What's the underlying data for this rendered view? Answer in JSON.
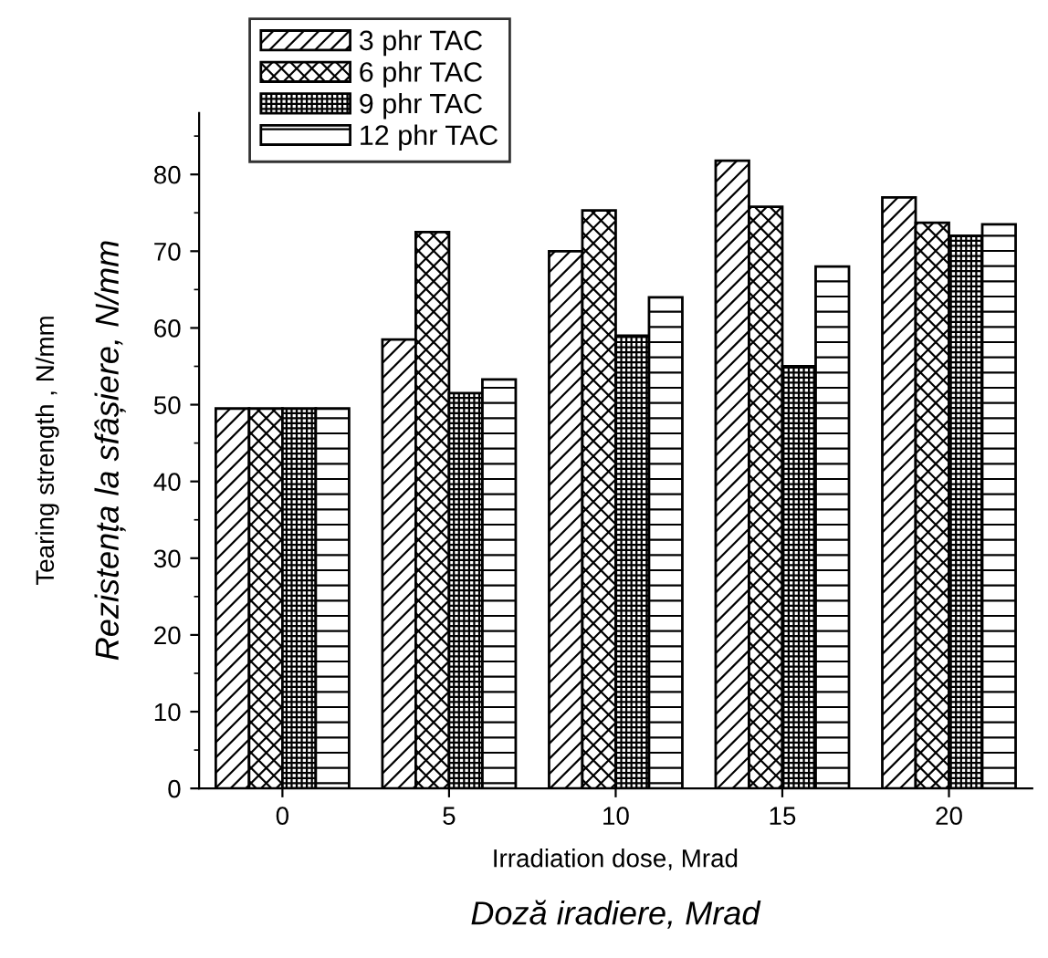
{
  "chart_data": {
    "type": "bar",
    "xlabel": "Irradiation dose, Mrad\nDoză iradiere, Mrad",
    "ylabel": "Tearing strength , N/mm\nRezistența la sfâșiere, N/mm",
    "categories": [
      "0",
      "5",
      "10",
      "15",
      "20"
    ],
    "series": [
      {
        "name": "3 phr TAC",
        "color": "#000000",
        "values": [
          49.5,
          58.5,
          70,
          81.8,
          77
        ]
      },
      {
        "name": "6 phr TAC",
        "color": "#000000",
        "values": [
          49.5,
          72.5,
          75.3,
          75.8,
          73.7
        ]
      },
      {
        "name": "9 phr TAC",
        "color": "#000000",
        "values": [
          49.5,
          51.5,
          59,
          55,
          72
        ]
      },
      {
        "name": "12 phr TAC",
        "color": "#000000",
        "values": [
          49.5,
          53.3,
          64,
          68,
          73.5
        ]
      }
    ],
    "ylim": [
      0,
      88
    ],
    "yticks": [
      0,
      10,
      20,
      30,
      40,
      50,
      60,
      70,
      80
    ],
    "grid": false,
    "legend": "top left"
  }
}
